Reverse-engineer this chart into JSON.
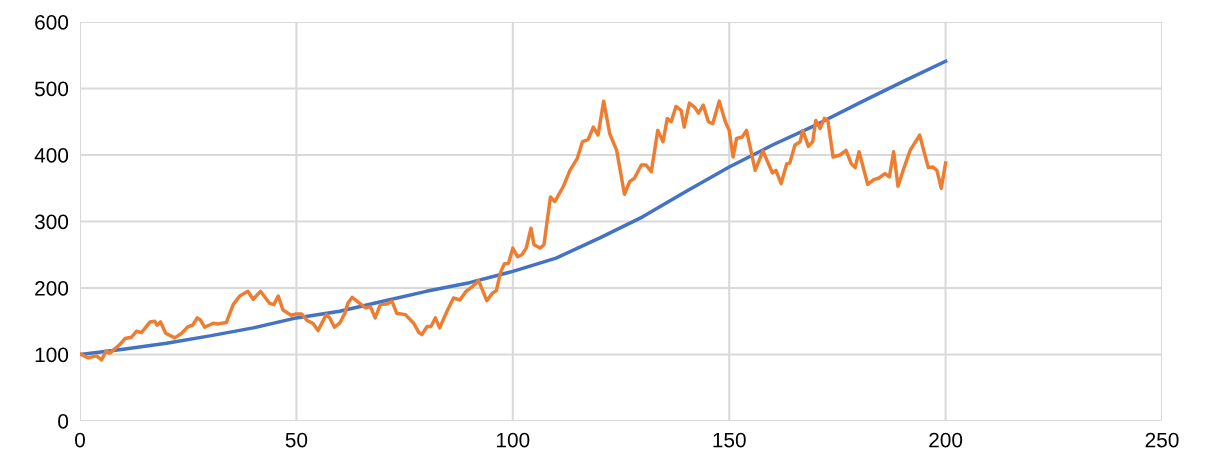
{
  "chart_data": {
    "type": "line",
    "xlim": [
      0,
      250
    ],
    "ylim": [
      0,
      600
    ],
    "xticks": [
      0,
      50,
      100,
      150,
      200,
      250
    ],
    "yticks": [
      0,
      100,
      200,
      300,
      400,
      500,
      600
    ],
    "grid": true,
    "marker": "none",
    "line_style": "solid",
    "series": [
      {
        "color": "#4472c4",
        "x": [
          0,
          10,
          20,
          30,
          40,
          50,
          60,
          70,
          80,
          90,
          100,
          110,
          120,
          130,
          140,
          150,
          160,
          170,
          180,
          190,
          200
        ],
        "values": [
          100,
          108,
          117,
          128,
          140,
          155,
          165,
          180,
          195,
          208,
          225,
          245,
          275,
          307,
          345,
          382,
          415,
          445,
          478,
          510,
          541
        ]
      },
      {
        "color": "#ed7d31",
        "x": [
          0,
          1.9,
          3.8,
          5,
          6,
          6.9,
          9.2,
          10.4,
          11.9,
          13.1,
          14.2,
          16.2,
          17.3,
          17.8,
          18.6,
          19.8,
          21.9,
          23.5,
          25,
          26,
          27.1,
          27.8,
          28.8,
          30.8,
          31.9,
          33.8,
          35.4,
          36.9,
          38.8,
          40,
          41.7,
          43.8,
          44.8,
          45.8,
          46.9,
          48.8,
          50,
          51.2,
          52.5,
          53.8,
          55,
          56.9,
          57.7,
          58.8,
          60,
          61.2,
          61.9,
          62.9,
          65,
          66,
          67.1,
          68.2,
          69.4,
          70.9,
          72.1,
          73.2,
          75.2,
          77.1,
          78.3,
          79,
          80.2,
          81.1,
          82.1,
          83.1,
          84.8,
          86.3,
          87.8,
          89.2,
          90.8,
          92.1,
          94,
          95.4,
          96.2,
          97.1,
          98,
          99,
          100,
          101.1,
          102.1,
          103.1,
          104.2,
          104.9,
          106.3,
          107.2,
          108.7,
          109.7,
          111.7,
          113.2,
          114.9,
          116.1,
          117.4,
          118.6,
          119.7,
          121,
          122.4,
          124,
          125.8,
          127,
          128.1,
          129.7,
          130.8,
          132,
          133.5,
          134.7,
          135.7,
          136.6,
          137.7,
          138.9,
          139.6,
          140.8,
          142,
          142.9,
          144,
          145.2,
          146.2,
          147.7,
          149.1,
          150,
          150.9,
          151.7,
          153,
          154,
          156,
          157.8,
          160,
          160.8,
          162,
          163.3,
          164,
          165.2,
          166.4,
          167,
          168.3,
          169.3,
          170,
          171,
          172,
          172.8,
          174,
          175.6,
          177,
          178.2,
          179.1,
          180,
          182,
          183.4,
          184.5,
          186,
          187,
          188,
          189,
          190.2,
          191.8,
          194,
          196,
          197,
          198,
          199,
          200
        ],
        "values": [
          101,
          95,
          98,
          92,
          105,
          102,
          115,
          124,
          126,
          135,
          133,
          149,
          150,
          144,
          149,
          132,
          125,
          132,
          142,
          144,
          155,
          152,
          141,
          147,
          146,
          148,
          175,
          188,
          195,
          183,
          195,
          177,
          175,
          188,
          167,
          159,
          161,
          161,
          151,
          147,
          136,
          160,
          155,
          141,
          147,
          162,
          177,
          186,
          175,
          170,
          172,
          155,
          175,
          176,
          180,
          162,
          160,
          147,
          133,
          130,
          142,
          142,
          155,
          140,
          165,
          185,
          182,
          195,
          203,
          211,
          181,
          193,
          196,
          222,
          236,
          237,
          260,
          247,
          250,
          260,
          290,
          265,
          260,
          265,
          337,
          330,
          353,
          377,
          395,
          420,
          423,
          442,
          430,
          481,
          432,
          407,
          341,
          360,
          365,
          385,
          385,
          375,
          437,
          420,
          455,
          450,
          473,
          467,
          442,
          478,
          472,
          463,
          475,
          450,
          447,
          481,
          450,
          437,
          397,
          425,
          427,
          437,
          377,
          406,
          373,
          377,
          357,
          387,
          388,
          415,
          420,
          437,
          413,
          420,
          452,
          440,
          455,
          452,
          397,
          400,
          407,
          387,
          381,
          405,
          356,
          363,
          365,
          372,
          367,
          405,
          353,
          377,
          407,
          430,
          381,
          382,
          377,
          350,
          388
        ]
      }
    ]
  }
}
